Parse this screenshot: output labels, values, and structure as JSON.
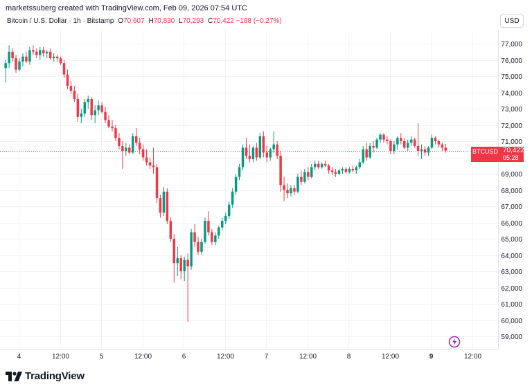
{
  "header": {
    "created_by": "marketssuberg created with TradingView.com, Feb 09, 2026 07:54 UTC",
    "currency_button": "USD"
  },
  "legend": {
    "symbol": "Bitcoin / U.S. Dollar · 1h · Bitstamp",
    "o_label": "O",
    "o_value": "70,607",
    "h_label": "H",
    "h_value": "70,830",
    "l_label": "L",
    "l_value": "70,293",
    "c_label": "C",
    "c_value": "70,422",
    "change": "−188 (−0.27%)"
  },
  "price_tag": {
    "symbol": "BTCUSD",
    "price": "70,422",
    "countdown": "05:28"
  },
  "branding": {
    "logo_text": "TradingView"
  },
  "colors": {
    "up": "#089981",
    "down": "#f23645",
    "grid": "#f0f3fa",
    "axis_text": "#131722"
  },
  "chart_data": {
    "type": "candlestick",
    "symbol": "BTCUSD",
    "timeframe": "1h",
    "y_ticks": [
      59000,
      60000,
      61000,
      62000,
      63000,
      64000,
      65000,
      66000,
      67000,
      68000,
      69000,
      70000,
      71000,
      72000,
      73000,
      74000,
      75000,
      76000,
      77000
    ],
    "y_tick_labels": [
      "59,000",
      "60,000",
      "61,000",
      "62,000",
      "63,000",
      "64,000",
      "65,000",
      "66,000",
      "67,000",
      "68,000",
      "69,000",
      "70,000",
      "71,000",
      "72,000",
      "73,000",
      "74,000",
      "75,000",
      "76,000",
      "77,000"
    ],
    "ylim": [
      58400,
      77800
    ],
    "x_ticks": [
      {
        "label": "4",
        "bold": false
      },
      {
        "label": "12:00",
        "bold": false
      },
      {
        "label": "5",
        "bold": false
      },
      {
        "label": "12:00",
        "bold": false
      },
      {
        "label": "6",
        "bold": false
      },
      {
        "label": "12:00",
        "bold": false
      },
      {
        "label": "7",
        "bold": false
      },
      {
        "label": "12:00",
        "bold": false
      },
      {
        "label": "8",
        "bold": false
      },
      {
        "label": "12:00",
        "bold": false
      },
      {
        "label": "9",
        "bold": true
      },
      {
        "label": "12:00",
        "bold": false
      }
    ],
    "x_tick_hours": [
      4,
      16,
      28,
      40,
      52,
      64,
      76,
      88,
      100,
      112,
      124,
      136
    ],
    "last_price": 70422,
    "candles": [
      {
        "o": 75500,
        "h": 76000,
        "l": 74600,
        "c": 75800
      },
      {
        "o": 75800,
        "h": 76900,
        "l": 75500,
        "c": 76500
      },
      {
        "o": 76500,
        "h": 76700,
        "l": 75900,
        "c": 76100
      },
      {
        "o": 76100,
        "h": 76300,
        "l": 75200,
        "c": 75400
      },
      {
        "o": 75400,
        "h": 76100,
        "l": 75300,
        "c": 75900
      },
      {
        "o": 75900,
        "h": 76400,
        "l": 75600,
        "c": 76200
      },
      {
        "o": 76200,
        "h": 76500,
        "l": 75800,
        "c": 75900
      },
      {
        "o": 75900,
        "h": 76800,
        "l": 75700,
        "c": 76600
      },
      {
        "o": 76600,
        "h": 76900,
        "l": 76300,
        "c": 76500
      },
      {
        "o": 76500,
        "h": 76700,
        "l": 76100,
        "c": 76300
      },
      {
        "o": 76300,
        "h": 76800,
        "l": 76000,
        "c": 76600
      },
      {
        "o": 76600,
        "h": 76800,
        "l": 76200,
        "c": 76400
      },
      {
        "o": 76400,
        "h": 76600,
        "l": 76100,
        "c": 76500
      },
      {
        "o": 76500,
        "h": 76700,
        "l": 76000,
        "c": 76100
      },
      {
        "o": 76100,
        "h": 76400,
        "l": 75900,
        "c": 76200
      },
      {
        "o": 76200,
        "h": 76300,
        "l": 75900,
        "c": 76100
      },
      {
        "o": 76100,
        "h": 76200,
        "l": 75700,
        "c": 75800
      },
      {
        "o": 75800,
        "h": 76000,
        "l": 74900,
        "c": 75100
      },
      {
        "o": 75100,
        "h": 75400,
        "l": 74200,
        "c": 74400
      },
      {
        "o": 74400,
        "h": 74700,
        "l": 73900,
        "c": 74100
      },
      {
        "o": 74100,
        "h": 74400,
        "l": 73400,
        "c": 73600
      },
      {
        "o": 73600,
        "h": 73900,
        "l": 72200,
        "c": 72500
      },
      {
        "o": 72500,
        "h": 73000,
        "l": 72100,
        "c": 72700
      },
      {
        "o": 72700,
        "h": 73600,
        "l": 72500,
        "c": 73400
      },
      {
        "o": 73400,
        "h": 73800,
        "l": 73000,
        "c": 73600
      },
      {
        "o": 73600,
        "h": 73700,
        "l": 72300,
        "c": 72600
      },
      {
        "o": 72600,
        "h": 73200,
        "l": 72100,
        "c": 72900
      },
      {
        "o": 72900,
        "h": 73500,
        "l": 72600,
        "c": 73200
      },
      {
        "o": 73200,
        "h": 73400,
        "l": 72700,
        "c": 72800
      },
      {
        "o": 72800,
        "h": 73100,
        "l": 72100,
        "c": 72300
      },
      {
        "o": 72300,
        "h": 72600,
        "l": 71800,
        "c": 71900
      },
      {
        "o": 71900,
        "h": 72300,
        "l": 71600,
        "c": 71800
      },
      {
        "o": 71800,
        "h": 72000,
        "l": 71000,
        "c": 71200
      },
      {
        "o": 71200,
        "h": 71500,
        "l": 70500,
        "c": 70700
      },
      {
        "o": 70700,
        "h": 71000,
        "l": 69300,
        "c": 70400
      },
      {
        "o": 70400,
        "h": 70900,
        "l": 70100,
        "c": 70600
      },
      {
        "o": 70600,
        "h": 70800,
        "l": 70200,
        "c": 70300
      },
      {
        "o": 70300,
        "h": 71500,
        "l": 70200,
        "c": 71300
      },
      {
        "o": 71300,
        "h": 71800,
        "l": 70700,
        "c": 70900
      },
      {
        "o": 70900,
        "h": 71200,
        "l": 70200,
        "c": 70500
      },
      {
        "o": 70500,
        "h": 70800,
        "l": 69800,
        "c": 70000
      },
      {
        "o": 70000,
        "h": 70500,
        "l": 69500,
        "c": 69700
      },
      {
        "o": 69700,
        "h": 70000,
        "l": 69300,
        "c": 69500
      },
      {
        "o": 69500,
        "h": 70600,
        "l": 69000,
        "c": 69400
      },
      {
        "o": 69400,
        "h": 69600,
        "l": 67200,
        "c": 67500
      },
      {
        "o": 67500,
        "h": 67700,
        "l": 66300,
        "c": 66600
      },
      {
        "o": 66600,
        "h": 68200,
        "l": 66400,
        "c": 67900
      },
      {
        "o": 67900,
        "h": 68100,
        "l": 65900,
        "c": 66100
      },
      {
        "o": 66100,
        "h": 66300,
        "l": 64800,
        "c": 65000
      },
      {
        "o": 65000,
        "h": 65300,
        "l": 62300,
        "c": 63500
      },
      {
        "o": 63500,
        "h": 64500,
        "l": 62700,
        "c": 63800
      },
      {
        "o": 63800,
        "h": 64000,
        "l": 62500,
        "c": 63000
      },
      {
        "o": 63000,
        "h": 63900,
        "l": 62400,
        "c": 63700
      },
      {
        "o": 63700,
        "h": 64100,
        "l": 59900,
        "c": 63300
      },
      {
        "o": 63300,
        "h": 65600,
        "l": 63100,
        "c": 65400
      },
      {
        "o": 65400,
        "h": 65900,
        "l": 64500,
        "c": 64800
      },
      {
        "o": 64800,
        "h": 65100,
        "l": 64000,
        "c": 64200
      },
      {
        "o": 64200,
        "h": 65000,
        "l": 64000,
        "c": 64800
      },
      {
        "o": 64800,
        "h": 66300,
        "l": 64700,
        "c": 66100
      },
      {
        "o": 66100,
        "h": 66700,
        "l": 65200,
        "c": 65400
      },
      {
        "o": 65400,
        "h": 65600,
        "l": 64600,
        "c": 64800
      },
      {
        "o": 64800,
        "h": 65400,
        "l": 64600,
        "c": 65200
      },
      {
        "o": 65200,
        "h": 65800,
        "l": 65000,
        "c": 65700
      },
      {
        "o": 65700,
        "h": 66300,
        "l": 65500,
        "c": 66100
      },
      {
        "o": 66100,
        "h": 66600,
        "l": 65900,
        "c": 66400
      },
      {
        "o": 66400,
        "h": 67300,
        "l": 66200,
        "c": 67100
      },
      {
        "o": 67100,
        "h": 68100,
        "l": 66900,
        "c": 67900
      },
      {
        "o": 67900,
        "h": 69000,
        "l": 67700,
        "c": 68800
      },
      {
        "o": 68800,
        "h": 69600,
        "l": 68600,
        "c": 69400
      },
      {
        "o": 69400,
        "h": 70800,
        "l": 69200,
        "c": 70600
      },
      {
        "o": 70600,
        "h": 71200,
        "l": 69900,
        "c": 70100
      },
      {
        "o": 70100,
        "h": 70800,
        "l": 69700,
        "c": 69900
      },
      {
        "o": 69900,
        "h": 70700,
        "l": 69700,
        "c": 70600
      },
      {
        "o": 70600,
        "h": 70900,
        "l": 69800,
        "c": 70000
      },
      {
        "o": 70000,
        "h": 71500,
        "l": 69900,
        "c": 71300
      },
      {
        "o": 71300,
        "h": 71600,
        "l": 70000,
        "c": 70300
      },
      {
        "o": 70300,
        "h": 70700,
        "l": 69700,
        "c": 70000
      },
      {
        "o": 70000,
        "h": 70600,
        "l": 69800,
        "c": 70500
      },
      {
        "o": 70500,
        "h": 71600,
        "l": 70300,
        "c": 70800
      },
      {
        "o": 70800,
        "h": 71000,
        "l": 69900,
        "c": 70100
      },
      {
        "o": 70100,
        "h": 70400,
        "l": 67900,
        "c": 68300
      },
      {
        "o": 68300,
        "h": 68800,
        "l": 67300,
        "c": 68000
      },
      {
        "o": 68000,
        "h": 68400,
        "l": 67500,
        "c": 67800
      },
      {
        "o": 67800,
        "h": 68300,
        "l": 67600,
        "c": 68100
      },
      {
        "o": 68100,
        "h": 68300,
        "l": 67700,
        "c": 67900
      },
      {
        "o": 67900,
        "h": 69000,
        "l": 67800,
        "c": 68800
      },
      {
        "o": 68800,
        "h": 69200,
        "l": 68300,
        "c": 68500
      },
      {
        "o": 68500,
        "h": 69300,
        "l": 68400,
        "c": 69100
      },
      {
        "o": 69100,
        "h": 69400,
        "l": 68600,
        "c": 68800
      },
      {
        "o": 68800,
        "h": 69600,
        "l": 68700,
        "c": 69400
      },
      {
        "o": 69400,
        "h": 69800,
        "l": 69200,
        "c": 69600
      },
      {
        "o": 69600,
        "h": 69800,
        "l": 69300,
        "c": 69400
      },
      {
        "o": 69400,
        "h": 69700,
        "l": 69300,
        "c": 69600
      },
      {
        "o": 69600,
        "h": 69800,
        "l": 69400,
        "c": 69500
      },
      {
        "o": 69500,
        "h": 69600,
        "l": 69000,
        "c": 69200
      },
      {
        "o": 69200,
        "h": 69400,
        "l": 68900,
        "c": 69100
      },
      {
        "o": 69100,
        "h": 69300,
        "l": 68800,
        "c": 69000
      },
      {
        "o": 69000,
        "h": 69300,
        "l": 68900,
        "c": 69200
      },
      {
        "o": 69200,
        "h": 69400,
        "l": 69000,
        "c": 69300
      },
      {
        "o": 69300,
        "h": 69400,
        "l": 69000,
        "c": 69100
      },
      {
        "o": 69100,
        "h": 69400,
        "l": 69000,
        "c": 69300
      },
      {
        "o": 69300,
        "h": 69500,
        "l": 69100,
        "c": 69200
      },
      {
        "o": 69200,
        "h": 69500,
        "l": 69000,
        "c": 69400
      },
      {
        "o": 69400,
        "h": 69900,
        "l": 69300,
        "c": 69700
      },
      {
        "o": 69700,
        "h": 70700,
        "l": 69600,
        "c": 70500
      },
      {
        "o": 70500,
        "h": 70900,
        "l": 69800,
        "c": 70000
      },
      {
        "o": 70000,
        "h": 70900,
        "l": 69900,
        "c": 70700
      },
      {
        "o": 70700,
        "h": 71000,
        "l": 70300,
        "c": 70600
      },
      {
        "o": 70600,
        "h": 71200,
        "l": 70500,
        "c": 71100
      },
      {
        "o": 71100,
        "h": 71500,
        "l": 70900,
        "c": 71400
      },
      {
        "o": 71400,
        "h": 71500,
        "l": 70900,
        "c": 71100
      },
      {
        "o": 71100,
        "h": 71300,
        "l": 70800,
        "c": 71000
      },
      {
        "o": 71000,
        "h": 71100,
        "l": 70200,
        "c": 70400
      },
      {
        "o": 70400,
        "h": 71000,
        "l": 70200,
        "c": 70800
      },
      {
        "o": 70800,
        "h": 71300,
        "l": 70500,
        "c": 71200
      },
      {
        "o": 71200,
        "h": 71500,
        "l": 70800,
        "c": 71000
      },
      {
        "o": 71000,
        "h": 71200,
        "l": 70500,
        "c": 70600
      },
      {
        "o": 70600,
        "h": 71100,
        "l": 70400,
        "c": 70900
      },
      {
        "o": 70900,
        "h": 71300,
        "l": 70700,
        "c": 71100
      },
      {
        "o": 71100,
        "h": 71200,
        "l": 70600,
        "c": 70700
      },
      {
        "o": 70700,
        "h": 72100,
        "l": 70100,
        "c": 70400
      },
      {
        "o": 70400,
        "h": 70800,
        "l": 69900,
        "c": 70500
      },
      {
        "o": 70500,
        "h": 70700,
        "l": 70100,
        "c": 70300
      },
      {
        "o": 70300,
        "h": 70700,
        "l": 70100,
        "c": 70600
      },
      {
        "o": 70600,
        "h": 71400,
        "l": 70500,
        "c": 71200
      },
      {
        "o": 71200,
        "h": 71300,
        "l": 70800,
        "c": 71000
      },
      {
        "o": 71000,
        "h": 71100,
        "l": 70600,
        "c": 70800
      },
      {
        "o": 70800,
        "h": 70900,
        "l": 70400,
        "c": 70600
      },
      {
        "o": 70607,
        "h": 70830,
        "l": 70293,
        "c": 70422
      }
    ]
  }
}
